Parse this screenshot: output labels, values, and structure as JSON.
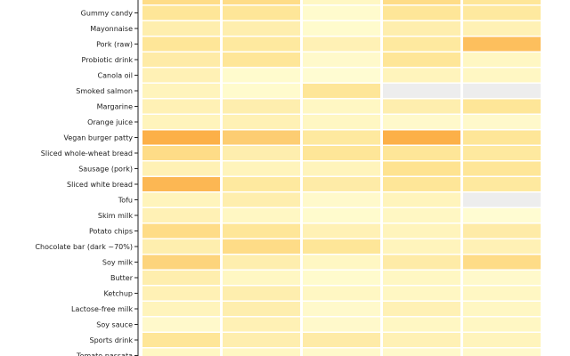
{
  "chart_data": {
    "type": "heatmap",
    "title": "",
    "xlabel": "",
    "ylabel": "",
    "columns": [
      "",
      "",
      "",
      "",
      ""
    ],
    "colorscale": {
      "type": "sequential",
      "low": "#ffffd9",
      "high": "#fb9a29",
      "missing": "#ededed",
      "vmin": 0,
      "vmax": 1
    },
    "rows": [
      "",
      "Gummy candy",
      "Mayonnaise",
      "Pork (raw)",
      "Probiotic drink",
      "Canola oil",
      "Smoked salmon",
      "Margarine",
      "Orange juice",
      "Vegan burger patty",
      "Sliced whole-wheat bread",
      "Sausage (pork)",
      "Sliced white bread",
      "Tofu",
      "Skim milk",
      "Potato chips",
      "Chocolate bar (dark ~70%)",
      "Soy milk",
      "Butter",
      "Ketchup",
      "Lactose-free milk",
      "Soy sauce",
      "Sports drink",
      "Tomato passata"
    ],
    "values": [
      [
        0.55,
        0.55,
        0.15,
        0.55,
        0.45
      ],
      [
        0.45,
        0.45,
        0.08,
        0.45,
        0.4
      ],
      [
        0.3,
        0.3,
        0.08,
        0.3,
        0.25
      ],
      [
        0.45,
        0.4,
        0.25,
        0.4,
        0.75
      ],
      [
        0.35,
        0.45,
        0.1,
        0.45,
        0.15
      ],
      [
        0.25,
        0.08,
        0.05,
        0.2,
        0.15
      ],
      [
        0.2,
        0.08,
        0.45,
        null,
        null
      ],
      [
        0.25,
        0.3,
        0.15,
        0.3,
        0.45
      ],
      [
        0.2,
        0.25,
        0.15,
        0.1,
        0.1
      ],
      [
        0.85,
        0.65,
        0.4,
        0.85,
        0.45
      ],
      [
        0.55,
        0.3,
        0.45,
        0.45,
        0.4
      ],
      [
        0.25,
        0.2,
        0.2,
        0.5,
        0.45
      ],
      [
        0.8,
        0.4,
        0.35,
        0.45,
        0.4
      ],
      [
        0.2,
        0.3,
        0.1,
        0.2,
        null
      ],
      [
        0.25,
        0.15,
        0.08,
        0.15,
        0.05
      ],
      [
        0.55,
        0.45,
        0.25,
        0.2,
        0.35
      ],
      [
        0.3,
        0.55,
        0.45,
        0.2,
        0.25
      ],
      [
        0.6,
        0.3,
        0.15,
        0.35,
        0.55
      ],
      [
        0.3,
        0.15,
        0.08,
        0.15,
        0.1
      ],
      [
        0.25,
        0.3,
        0.15,
        0.15,
        0.15
      ],
      [
        0.2,
        0.3,
        0.1,
        0.25,
        0.15
      ],
      [
        0.1,
        0.25,
        0.1,
        0.15,
        0.15
      ],
      [
        0.45,
        0.3,
        0.35,
        0.25,
        0.2
      ],
      [
        0.15,
        0.15,
        0.1,
        0.1,
        0.1
      ]
    ]
  }
}
